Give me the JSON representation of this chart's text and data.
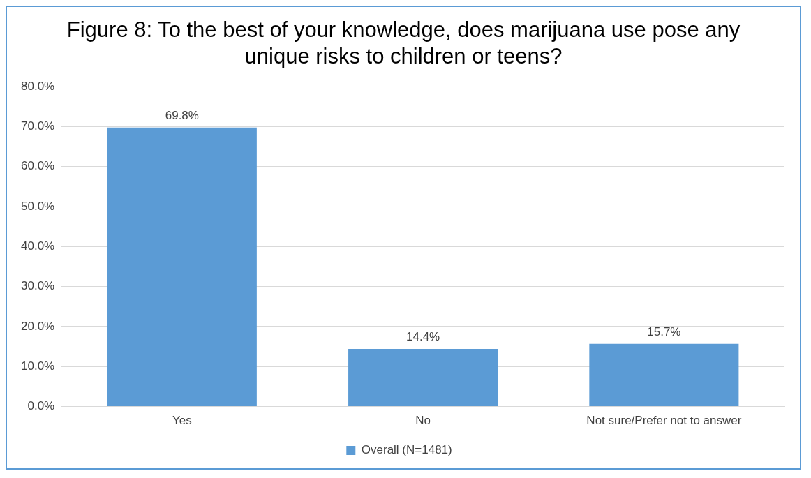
{
  "chart_data": {
    "type": "bar",
    "title": "Figure 8: To the best of your knowledge, does marijuana use pose any unique risks to children or teens?",
    "categories": [
      "Yes",
      "No",
      "Not sure/Prefer not to answer"
    ],
    "series": [
      {
        "name": "Overall (N=1481)",
        "color": "#5b9bd5",
        "values": [
          69.8,
          14.4,
          15.7
        ],
        "value_labels": [
          "69.8%",
          "14.4%",
          "15.7%"
        ]
      }
    ],
    "ylim": [
      0,
      80
    ],
    "yticks": [
      {
        "value": 0,
        "label": "0.0%"
      },
      {
        "value": 10,
        "label": "10.0%"
      },
      {
        "value": 20,
        "label": "20.0%"
      },
      {
        "value": 30,
        "label": "30.0%"
      },
      {
        "value": 40,
        "label": "40.0%"
      },
      {
        "value": 50,
        "label": "50.0%"
      },
      {
        "value": 60,
        "label": "60.0%"
      },
      {
        "value": 70,
        "label": "70.0%"
      },
      {
        "value": 80,
        "label": "80.0%"
      }
    ],
    "grid": "y",
    "legend": "bottom"
  }
}
